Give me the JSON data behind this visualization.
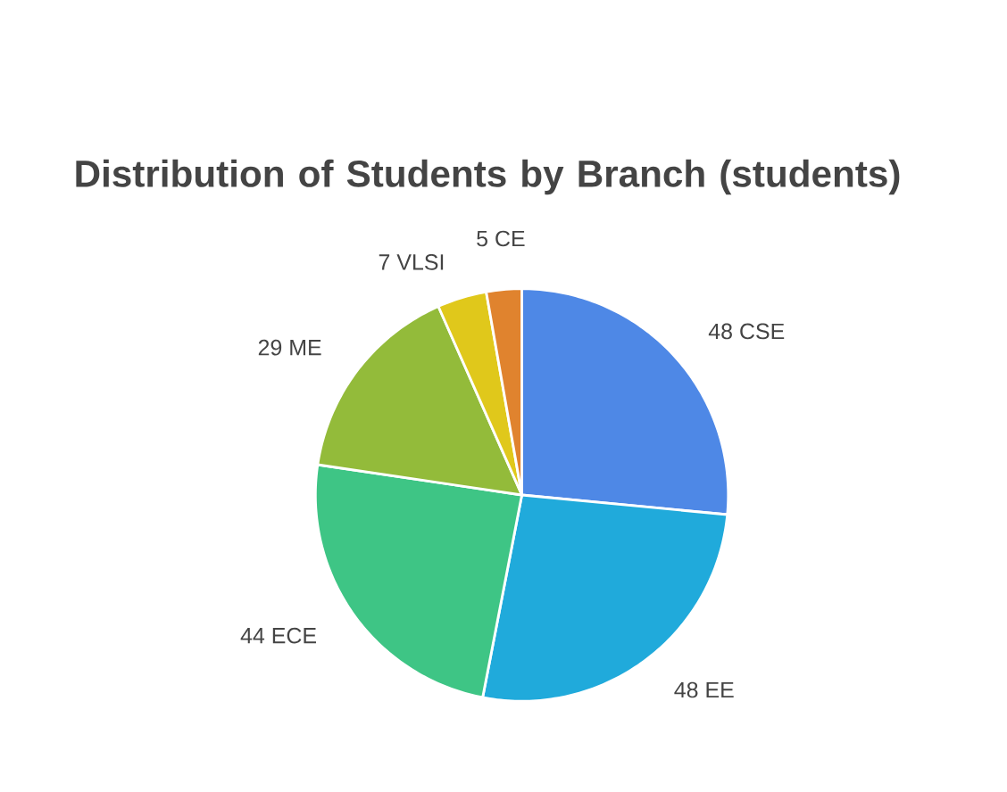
{
  "chart_data": {
    "type": "pie",
    "title": "Distribution of Students by Branch (students)",
    "categories": [
      "CSE",
      "EE",
      "ECE",
      "ME",
      "VLSI",
      "CE"
    ],
    "values": [
      48,
      48,
      44,
      29,
      7,
      5
    ],
    "colors": [
      "#4e88e6",
      "#20aadb",
      "#3ec585",
      "#93bb3a",
      "#e0c81b",
      "#e0832e"
    ],
    "data_labels": true
  }
}
